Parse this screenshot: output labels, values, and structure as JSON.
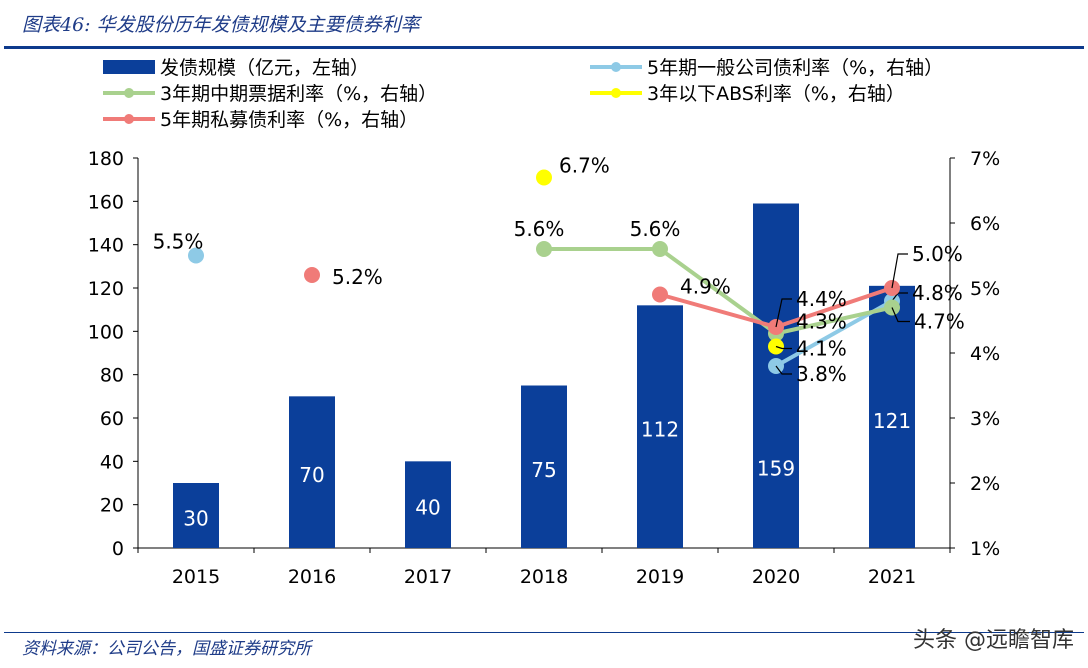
{
  "title": "图表46: 华发股份历年发债规模及主要债券利率",
  "source": "资料来源：公司公告，国盛证券研究所",
  "watermark": "头条 @远瞻智库",
  "chart_data": {
    "type": "bar+line",
    "categories": [
      "2015",
      "2016",
      "2017",
      "2018",
      "2019",
      "2020",
      "2021"
    ],
    "left_axis": {
      "ylim": [
        0,
        180
      ],
      "ticks": [
        0,
        20,
        40,
        60,
        80,
        100,
        120,
        140,
        160,
        180
      ]
    },
    "right_axis": {
      "ylim": [
        1,
        7
      ],
      "ticks": [
        "1%",
        "2%",
        "3%",
        "4%",
        "5%",
        "6%",
        "7%"
      ]
    },
    "legend_placement": "top",
    "bar_series": {
      "name": "发债规模（亿元，左轴）",
      "color": "#0b3f9a",
      "values": [
        30,
        70,
        40,
        75,
        112,
        159,
        121
      ]
    },
    "line_series": [
      {
        "name": "5年期一般公司债利率（%，右轴）",
        "color": "#8ecae6",
        "values": [
          5.5,
          null,
          null,
          null,
          null,
          3.8,
          4.8
        ]
      },
      {
        "name": "3年期中期票据利率（%，右轴）",
        "color": "#a9d18e",
        "values": [
          null,
          null,
          null,
          5.6,
          5.6,
          4.3,
          4.7
        ]
      },
      {
        "name": "3年以下ABS利率（%，右轴）",
        "color": "#ffff00",
        "values": [
          null,
          null,
          null,
          6.7,
          null,
          4.1,
          null
        ]
      },
      {
        "name": "5年期私募债利率（%，右轴）",
        "color": "#f07b78",
        "values": [
          null,
          5.2,
          null,
          null,
          4.9,
          4.4,
          5.0
        ]
      }
    ]
  }
}
